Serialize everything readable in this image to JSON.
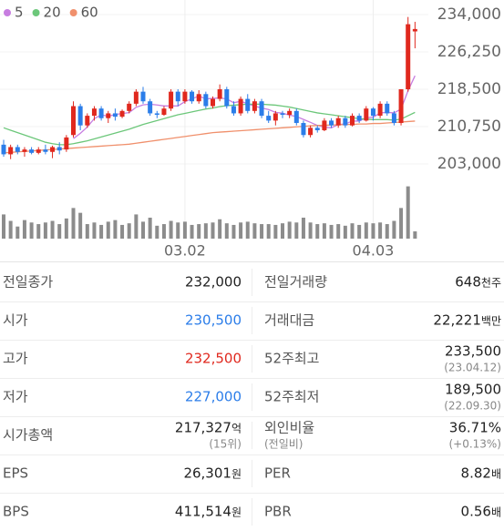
{
  "chart_data": {
    "type": "candlestick",
    "ylim": [
      203000,
      234000
    ],
    "yticks": [
      {
        "value": 234000,
        "label": "234,000"
      },
      {
        "value": 226250,
        "label": "226,250"
      },
      {
        "value": 218500,
        "label": "218,500"
      },
      {
        "value": 210750,
        "label": "210,750"
      },
      {
        "value": 203000,
        "label": "203,000"
      }
    ],
    "up_color": "#e0281e",
    "down_color": "#2b7de9",
    "categories": [
      null,
      null,
      null,
      null,
      null,
      null,
      null,
      null,
      null,
      null,
      null,
      null,
      null,
      null,
      null,
      null,
      null,
      null,
      null,
      null,
      null,
      null,
      null,
      null,
      null,
      null,
      "03.02",
      null,
      null,
      null,
      null,
      null,
      null,
      null,
      null,
      null,
      null,
      null,
      null,
      null,
      null,
      null,
      null,
      null,
      null,
      null,
      null,
      null,
      null,
      null,
      null,
      null,
      null,
      "04.03",
      null,
      null,
      null,
      null,
      null,
      null
    ],
    "candles": [
      [
        207000,
        208000,
        204500,
        205000
      ],
      [
        205000,
        207000,
        204000,
        206500
      ],
      [
        206500,
        207000,
        205000,
        205500
      ],
      [
        205500,
        206500,
        204500,
        206000
      ],
      [
        206000,
        206500,
        205000,
        205300
      ],
      [
        205300,
        206500,
        205000,
        206000
      ],
      [
        206000,
        207000,
        205000,
        205500
      ],
      [
        205500,
        206800,
        204200,
        206500
      ],
      [
        206500,
        207500,
        205000,
        205800
      ],
      [
        206000,
        209000,
        205500,
        208500
      ],
      [
        209000,
        216000,
        208500,
        215000
      ],
      [
        215000,
        215500,
        210000,
        211000
      ],
      [
        211000,
        213500,
        210500,
        213000
      ],
      [
        213000,
        215000,
        212000,
        214500
      ],
      [
        214500,
        215000,
        212000,
        212500
      ],
      [
        212500,
        214000,
        211500,
        213500
      ],
      [
        213500,
        214500,
        212000,
        212800
      ],
      [
        212800,
        214300,
        212500,
        214000
      ],
      [
        214000,
        216000,
        213500,
        215500
      ],
      [
        215500,
        218500,
        215000,
        218000
      ],
      [
        218000,
        219000,
        215500,
        216000
      ],
      [
        216000,
        216500,
        213000,
        213500
      ],
      [
        213500,
        214000,
        212500,
        213200
      ],
      [
        213200,
        215000,
        213000,
        214500
      ],
      [
        214500,
        218500,
        214000,
        218000
      ],
      [
        218000,
        218500,
        215000,
        216000
      ],
      [
        216000,
        218500,
        215500,
        218000
      ],
      [
        218000,
        218300,
        215500,
        216000
      ],
      [
        216000,
        218300,
        215500,
        217500
      ],
      [
        217500,
        218000,
        214500,
        215000
      ],
      [
        215000,
        217000,
        214500,
        216500
      ],
      [
        216500,
        219500,
        216000,
        218500
      ],
      [
        218500,
        219000,
        214500,
        215000
      ],
      [
        215000,
        216000,
        213000,
        213500
      ],
      [
        213500,
        217000,
        213000,
        216500
      ],
      [
        216500,
        217500,
        213500,
        214000
      ],
      [
        214000,
        216500,
        213500,
        216000
      ],
      [
        216000,
        216500,
        212500,
        213000
      ],
      [
        213000,
        214000,
        211500,
        212000
      ],
      [
        212000,
        214000,
        211000,
        213500
      ],
      [
        213500,
        214000,
        212500,
        213200
      ],
      [
        213200,
        214500,
        212500,
        214000
      ],
      [
        214000,
        214500,
        211000,
        211500
      ],
      [
        211500,
        212000,
        208500,
        209000
      ],
      [
        209000,
        211000,
        208500,
        210500
      ],
      [
        210500,
        211000,
        209500,
        210000
      ],
      [
        210000,
        212500,
        209800,
        212000
      ],
      [
        212000,
        212500,
        210500,
        211000
      ],
      [
        211000,
        213000,
        210500,
        212500
      ],
      [
        212500,
        213000,
        210500,
        211000
      ],
      [
        211000,
        213500,
        210800,
        213000
      ],
      [
        213000,
        213500,
        211500,
        212000
      ],
      [
        212000,
        215000,
        211800,
        214500
      ],
      [
        214500,
        214800,
        212000,
        213000
      ],
      [
        213000,
        216000,
        212500,
        215500
      ],
      [
        215500,
        216000,
        213000,
        213500
      ],
      [
        213500,
        214000,
        211000,
        211500
      ],
      [
        211500,
        218500,
        211000,
        218500
      ],
      [
        218500,
        233500,
        218000,
        232000
      ],
      [
        230500,
        232500,
        227000,
        231000
      ]
    ],
    "volumes": [
      300,
      220,
      150,
      230,
      200,
      180,
      200,
      220,
      180,
      250,
      380,
      320,
      180,
      200,
      170,
      210,
      230,
      170,
      190,
      300,
      210,
      260,
      160,
      180,
      220,
      200,
      210,
      170,
      180,
      190,
      200,
      240,
      190,
      170,
      200,
      210,
      190,
      180,
      180,
      170,
      190,
      210,
      200,
      260,
      200,
      180,
      190,
      170,
      180,
      160,
      190,
      170,
      200,
      190,
      200,
      180,
      220,
      380,
      648,
      90
    ],
    "volume_ylim": [
      0,
      700
    ],
    "volume_color": "#8c8c8c",
    "series": [
      {
        "name": "5",
        "color": "#c77de0",
        "values": [
          null,
          null,
          null,
          null,
          null,
          null,
          null,
          null,
          null,
          null,
          208260,
          209360,
          210660,
          212400,
          213200,
          212900,
          213260,
          213460,
          213660,
          214760,
          215260,
          215400,
          215240,
          215040,
          215040,
          215040,
          215940,
          216500,
          217100,
          216500,
          216600,
          216700,
          216500,
          215700,
          216000,
          215500,
          215000,
          214600,
          214300,
          213700,
          213540,
          213140,
          212840,
          212240,
          211640,
          211000,
          210600,
          210500,
          211200,
          211300,
          211900,
          211900,
          212600,
          212700,
          213600,
          213700,
          213600,
          214400,
          218200,
          221300
        ]
      },
      {
        "name": "20",
        "color": "#6cc77a",
        "values": [
          210500,
          210000,
          209500,
          209000,
          208500,
          208000,
          207500,
          207200,
          207000,
          207000,
          207200,
          207500,
          207800,
          208200,
          208600,
          209000,
          209400,
          209800,
          210200,
          210700,
          211200,
          211600,
          212000,
          212400,
          212800,
          213200,
          213500,
          213800,
          214100,
          214400,
          214600,
          214900,
          215100,
          215200,
          215300,
          215400,
          215400,
          215400,
          215300,
          215200,
          215000,
          214800,
          214500,
          214200,
          213900,
          213600,
          213400,
          213200,
          213000,
          212800,
          212600,
          212400,
          212300,
          212200,
          212200,
          212200,
          212100,
          212300,
          213000,
          213700
        ]
      },
      {
        "name": "60",
        "color": "#f0906c",
        "values": [
          205300,
          205400,
          205500,
          205600,
          205700,
          205800,
          205900,
          206000,
          206100,
          206200,
          206300,
          206400,
          206500,
          206600,
          206700,
          206800,
          206900,
          207000,
          207100,
          207300,
          207500,
          207700,
          207900,
          208100,
          208300,
          208500,
          208700,
          208900,
          209100,
          209300,
          209500,
          209600,
          209700,
          209800,
          209900,
          210000,
          210100,
          210200,
          210300,
          210400,
          210500,
          210600,
          210700,
          210800,
          210900,
          211000,
          211000,
          211100,
          211100,
          211200,
          211200,
          211300,
          211300,
          211400,
          211400,
          211500,
          211600,
          211700,
          211800,
          211900
        ]
      }
    ]
  },
  "table": {
    "rows": [
      [
        {
          "label": "전일종가",
          "value": "232,000"
        },
        {
          "label": "전일거래량",
          "value": "648",
          "unit": "천주"
        }
      ],
      [
        {
          "label": "시가",
          "value": "230,500",
          "color": "#2b7de9"
        },
        {
          "label": "거래대금",
          "value": "22,221",
          "unit": "백만"
        }
      ],
      [
        {
          "label": "고가",
          "value": "232,500",
          "color": "#e0281e"
        },
        {
          "label": "52주최고",
          "value": "233,500",
          "sub": "(23.04.12)"
        }
      ],
      [
        {
          "label": "저가",
          "value": "227,000",
          "color": "#2b7de9"
        },
        {
          "label": "52주최저",
          "value": "189,500",
          "sub": "(22.09.30)"
        }
      ],
      [
        {
          "label": "시가총액",
          "value": "217,327",
          "unit": "억",
          "sub": "(15위)"
        },
        {
          "label": "외인비율",
          "sublabel": "(전일비)",
          "value": "36.71%",
          "sub": "(+0.13%)"
        }
      ],
      [
        {
          "label": "EPS",
          "value": "26,301",
          "unit": "원"
        },
        {
          "label": "PER",
          "value": "8.82",
          "unit": "배"
        }
      ],
      [
        {
          "label": "BPS",
          "value": "411,514",
          "unit": "원"
        },
        {
          "label": "PBR",
          "value": "0.56",
          "unit": "배"
        }
      ]
    ]
  }
}
